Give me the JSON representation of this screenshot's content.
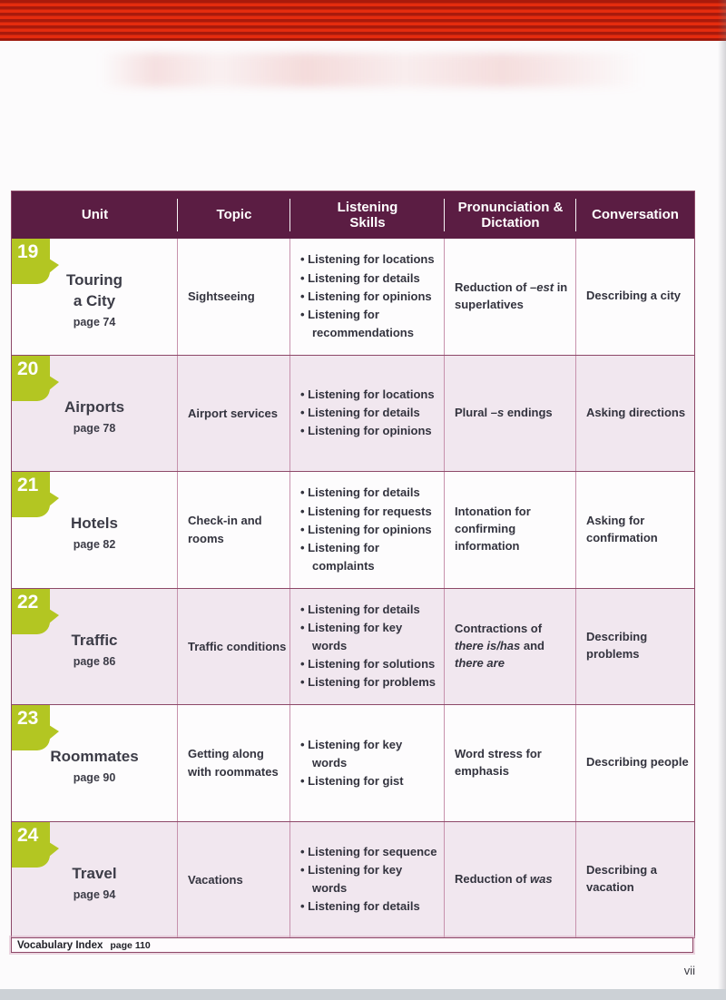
{
  "table": {
    "headers": [
      "Unit",
      "Topic",
      "Listening\nSkills",
      "Pronunciation &\nDictation",
      "Conversation"
    ],
    "rows": [
      {
        "unit_number": "19",
        "title_lines": [
          "Touring",
          "a City"
        ],
        "page": "page 74",
        "topic": "Sightseeing",
        "skills": [
          "Listening for locations",
          "Listening for details",
          "Listening for opinions",
          "Listening for recommendations"
        ],
        "pronunciation": [
          {
            "text": "Reduction of "
          },
          {
            "text": "–est",
            "italic": true
          },
          {
            "text": " in superlatives"
          }
        ],
        "conversation": "Describing a city",
        "shaded": false
      },
      {
        "unit_number": "20",
        "title_lines": [
          "Airports"
        ],
        "page": "page 78",
        "topic": "Airport services",
        "skills": [
          "Listening for locations",
          "Listening for details",
          "Listening for opinions"
        ],
        "pronunciation": [
          {
            "text": "Plural "
          },
          {
            "text": "–s",
            "italic": true
          },
          {
            "text": " endings"
          }
        ],
        "conversation": "Asking directions",
        "shaded": true
      },
      {
        "unit_number": "21",
        "title_lines": [
          "Hotels"
        ],
        "page": "page 82",
        "topic": "Check-in and rooms",
        "skills": [
          "Listening for details",
          "Listening for requests",
          "Listening for opinions",
          "Listening for complaints"
        ],
        "pronunciation": [
          {
            "text": "Intonation for confirming information"
          }
        ],
        "conversation": "Asking for confirmation",
        "shaded": false
      },
      {
        "unit_number": "22",
        "title_lines": [
          "Traffic"
        ],
        "page": "page 86",
        "topic": "Traffic conditions",
        "skills": [
          "Listening for details",
          "Listening for key words",
          "Listening for solutions",
          "Listening for problems"
        ],
        "pronunciation": [
          {
            "text": "Contractions of "
          },
          {
            "text": "there is/has",
            "italic": true
          },
          {
            "text": " and "
          },
          {
            "text": "there are",
            "italic": true
          }
        ],
        "conversation": "Describing problems",
        "shaded": true
      },
      {
        "unit_number": "23",
        "title_lines": [
          "Roommates"
        ],
        "page": "page 90",
        "topic": "Getting along with roommates",
        "skills": [
          "Listening for key words",
          "Listening for gist"
        ],
        "pronunciation": [
          {
            "text": "Word stress for emphasis"
          }
        ],
        "conversation": "Describing people",
        "shaded": false
      },
      {
        "unit_number": "24",
        "title_lines": [
          "Travel"
        ],
        "page": "page 94",
        "topic": "Vacations",
        "skills": [
          "Listening for sequence",
          "Listening for key words",
          "Listening for details"
        ],
        "pronunciation": [
          {
            "text": "Reduction of "
          },
          {
            "text": "was",
            "italic": true
          }
        ],
        "conversation": "Describing a vacation",
        "shaded": true
      }
    ]
  },
  "footer": {
    "vocab_label": "Vocabulary Index",
    "vocab_page": "page 110",
    "folio": "vii"
  },
  "colors": {
    "header_bg": "#5b1d43",
    "badge": "#b3c622",
    "shaded_row": "#f1e7ef",
    "stripe_dark": "#a91a0c",
    "stripe_bright": "#e52c0e",
    "grid_line": "#8d4868"
  }
}
